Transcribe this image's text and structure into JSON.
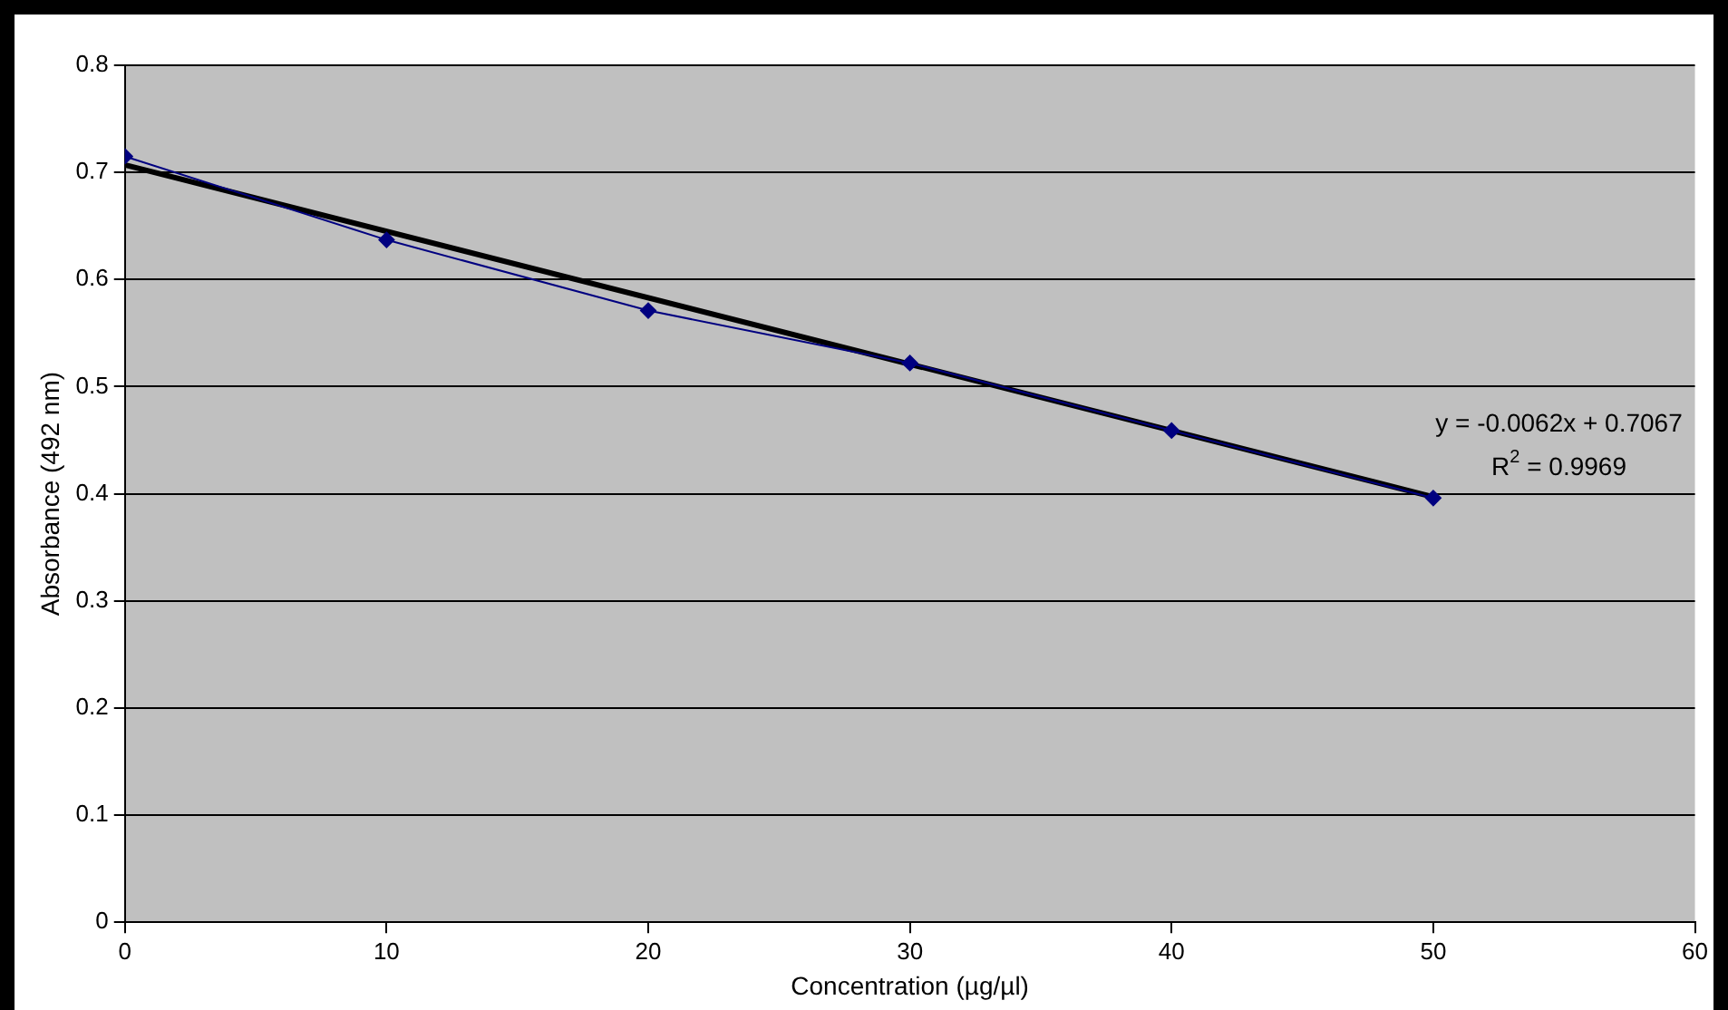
{
  "chart_data": {
    "type": "line",
    "xlabel": "Concentration (µg/µl)",
    "ylabel": "Absorbance (492 nm)",
    "series": [
      {
        "color": "#000080",
        "marker": "diamond",
        "x": [
          0,
          10,
          20,
          30,
          40,
          50
        ],
        "values": [
          0.715,
          0.637,
          0.571,
          0.522,
          0.459,
          0.396
        ]
      },
      {
        "color": "#000000",
        "marker": "none",
        "x": [
          0,
          50
        ],
        "values": [
          0.707,
          0.397
        ]
      }
    ],
    "annotations": [
      "y = -0.0062x + 0.7067",
      "R$^{2}$ = 0.9969"
    ],
    "xlim": [
      0,
      60
    ],
    "xticks": [
      0,
      10,
      20,
      30,
      40,
      50,
      60
    ],
    "ylim": [
      0,
      0.8
    ],
    "yticks": [
      0,
      0.1,
      0.2,
      0.3,
      0.4,
      0.5,
      0.6,
      0.7,
      0.8
    ],
    "grid": "y",
    "legend": false
  }
}
